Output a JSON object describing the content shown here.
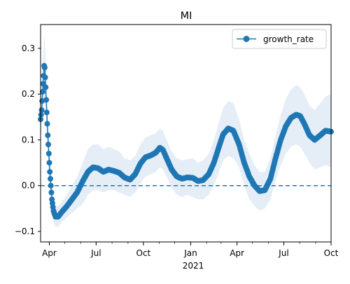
{
  "chart_data": {
    "type": "line",
    "title": "MI",
    "xlabel": "",
    "ylabel": "",
    "x_start": "2020-03-15",
    "x_end": "2021-10-01",
    "xlim": [
      "2020-03-15",
      "2021-10-01"
    ],
    "ylim": [
      -0.123,
      0.352
    ],
    "yticks": [
      -0.1,
      0.0,
      0.1,
      0.2,
      0.3
    ],
    "ytick_labels": [
      "−0.1",
      "0.0",
      "0.1",
      "0.2",
      "0.3"
    ],
    "xticks": [
      {
        "date": "2020-04-01",
        "label": "Apr"
      },
      {
        "date": "2020-07-01",
        "label": "Jul"
      },
      {
        "date": "2020-10-01",
        "label": "Oct"
      },
      {
        "date": "2021-01-01",
        "label": "Jan"
      },
      {
        "date": "2021-04-01",
        "label": "Apr"
      },
      {
        "date": "2021-07-01",
        "label": "Jul"
      },
      {
        "date": "2021-10-01",
        "label": "Oct"
      }
    ],
    "year_label": "2021",
    "reference_line": {
      "y": 0.0,
      "style": "dashed"
    },
    "legend": {
      "position": "upper right",
      "entries": [
        "growth_rate"
      ]
    },
    "grid": false,
    "series": [
      {
        "name": "growth_rate",
        "marker": "circle",
        "points": [
          {
            "x": "2020-03-15",
            "y": 0.145,
            "lo": 0.11,
            "hi": 0.19
          },
          {
            "x": "2020-03-17",
            "y": 0.165,
            "lo": 0.12,
            "hi": 0.22
          },
          {
            "x": "2020-03-19",
            "y": 0.205,
            "lo": 0.16,
            "hi": 0.26
          },
          {
            "x": "2020-03-21",
            "y": 0.24,
            "lo": 0.19,
            "hi": 0.3
          },
          {
            "x": "2020-03-22",
            "y": 0.262,
            "lo": 0.21,
            "hi": 0.33
          },
          {
            "x": "2020-03-23",
            "y": 0.258,
            "lo": 0.2,
            "hi": 0.32
          },
          {
            "x": "2020-03-25",
            "y": 0.215,
            "lo": 0.17,
            "hi": 0.27
          },
          {
            "x": "2020-03-27",
            "y": 0.16,
            "lo": 0.12,
            "hi": 0.21
          },
          {
            "x": "2020-03-29",
            "y": 0.11,
            "lo": 0.07,
            "hi": 0.15
          },
          {
            "x": "2020-03-31",
            "y": 0.07,
            "lo": 0.03,
            "hi": 0.11
          },
          {
            "x": "2020-04-02",
            "y": 0.03,
            "lo": -0.01,
            "hi": 0.07
          },
          {
            "x": "2020-04-04",
            "y": 0.0,
            "lo": -0.04,
            "hi": 0.04
          },
          {
            "x": "2020-04-06",
            "y": -0.03,
            "lo": -0.06,
            "hi": 0.01
          },
          {
            "x": "2020-04-09",
            "y": -0.055,
            "lo": -0.08,
            "hi": -0.03
          },
          {
            "x": "2020-04-13",
            "y": -0.068,
            "lo": -0.09,
            "hi": -0.045
          },
          {
            "x": "2020-04-18",
            "y": -0.068,
            "lo": -0.09,
            "hi": -0.045
          },
          {
            "x": "2020-04-25",
            "y": -0.058,
            "lo": -0.08,
            "hi": -0.035
          },
          {
            "x": "2020-05-05",
            "y": -0.045,
            "lo": -0.07,
            "hi": -0.02
          },
          {
            "x": "2020-05-15",
            "y": -0.03,
            "lo": -0.06,
            "hi": 0.0
          },
          {
            "x": "2020-05-25",
            "y": -0.015,
            "lo": -0.05,
            "hi": 0.02
          },
          {
            "x": "2020-06-05",
            "y": 0.01,
            "lo": -0.04,
            "hi": 0.05
          },
          {
            "x": "2020-06-15",
            "y": 0.03,
            "lo": -0.02,
            "hi": 0.08
          },
          {
            "x": "2020-06-25",
            "y": 0.04,
            "lo": -0.01,
            "hi": 0.09
          },
          {
            "x": "2020-07-05",
            "y": 0.038,
            "lo": -0.01,
            "hi": 0.09
          },
          {
            "x": "2020-07-15",
            "y": 0.03,
            "lo": -0.015,
            "hi": 0.08
          },
          {
            "x": "2020-07-25",
            "y": 0.035,
            "lo": -0.01,
            "hi": 0.085
          },
          {
            "x": "2020-08-05",
            "y": 0.032,
            "lo": -0.01,
            "hi": 0.08
          },
          {
            "x": "2020-08-15",
            "y": 0.028,
            "lo": -0.015,
            "hi": 0.075
          },
          {
            "x": "2020-08-25",
            "y": 0.018,
            "lo": -0.02,
            "hi": 0.06
          },
          {
            "x": "2020-09-05",
            "y": 0.013,
            "lo": -0.025,
            "hi": 0.055
          },
          {
            "x": "2020-09-15",
            "y": 0.025,
            "lo": -0.015,
            "hi": 0.065
          },
          {
            "x": "2020-09-25",
            "y": 0.048,
            "lo": 0.005,
            "hi": 0.09
          },
          {
            "x": "2020-10-05",
            "y": 0.062,
            "lo": 0.02,
            "hi": 0.105
          },
          {
            "x": "2020-10-15",
            "y": 0.066,
            "lo": 0.025,
            "hi": 0.11
          },
          {
            "x": "2020-10-25",
            "y": 0.072,
            "lo": 0.03,
            "hi": 0.115
          },
          {
            "x": "2020-11-02",
            "y": 0.083,
            "lo": 0.04,
            "hi": 0.125
          },
          {
            "x": "2020-11-08",
            "y": 0.078,
            "lo": 0.035,
            "hi": 0.12
          },
          {
            "x": "2020-11-15",
            "y": 0.06,
            "lo": 0.02,
            "hi": 0.1
          },
          {
            "x": "2020-11-25",
            "y": 0.035,
            "lo": -0.005,
            "hi": 0.075
          },
          {
            "x": "2020-12-05",
            "y": 0.02,
            "lo": -0.02,
            "hi": 0.06
          },
          {
            "x": "2020-12-15",
            "y": 0.015,
            "lo": -0.025,
            "hi": 0.055
          },
          {
            "x": "2020-12-25",
            "y": 0.018,
            "lo": -0.02,
            "hi": 0.058
          },
          {
            "x": "2021-01-05",
            "y": 0.017,
            "lo": -0.025,
            "hi": 0.06
          },
          {
            "x": "2021-01-15",
            "y": 0.01,
            "lo": -0.03,
            "hi": 0.05
          },
          {
            "x": "2021-01-25",
            "y": 0.012,
            "lo": -0.03,
            "hi": 0.055
          },
          {
            "x": "2021-02-05",
            "y": 0.025,
            "lo": -0.02,
            "hi": 0.07
          },
          {
            "x": "2021-02-15",
            "y": 0.05,
            "lo": 0.0,
            "hi": 0.1
          },
          {
            "x": "2021-02-25",
            "y": 0.085,
            "lo": 0.03,
            "hi": 0.14
          },
          {
            "x": "2021-03-05",
            "y": 0.112,
            "lo": 0.055,
            "hi": 0.17
          },
          {
            "x": "2021-03-15",
            "y": 0.125,
            "lo": 0.065,
            "hi": 0.185
          },
          {
            "x": "2021-03-25",
            "y": 0.12,
            "lo": 0.06,
            "hi": 0.18
          },
          {
            "x": "2021-04-05",
            "y": 0.09,
            "lo": 0.04,
            "hi": 0.145
          },
          {
            "x": "2021-04-15",
            "y": 0.05,
            "lo": 0.0,
            "hi": 0.1
          },
          {
            "x": "2021-04-25",
            "y": 0.02,
            "lo": -0.03,
            "hi": 0.07
          },
          {
            "x": "2021-05-05",
            "y": 0.0,
            "lo": -0.045,
            "hi": 0.045
          },
          {
            "x": "2021-05-15",
            "y": -0.012,
            "lo": -0.055,
            "hi": 0.03
          },
          {
            "x": "2021-05-25",
            "y": -0.01,
            "lo": -0.05,
            "hi": 0.03
          },
          {
            "x": "2021-06-05",
            "y": 0.015,
            "lo": -0.03,
            "hi": 0.06
          },
          {
            "x": "2021-06-15",
            "y": 0.06,
            "lo": 0.01,
            "hi": 0.11
          },
          {
            "x": "2021-06-25",
            "y": 0.1,
            "lo": 0.045,
            "hi": 0.155
          },
          {
            "x": "2021-07-05",
            "y": 0.13,
            "lo": 0.07,
            "hi": 0.19
          },
          {
            "x": "2021-07-15",
            "y": 0.148,
            "lo": 0.085,
            "hi": 0.21
          },
          {
            "x": "2021-07-25",
            "y": 0.155,
            "lo": 0.09,
            "hi": 0.22
          },
          {
            "x": "2021-08-02",
            "y": 0.152,
            "lo": 0.085,
            "hi": 0.215
          },
          {
            "x": "2021-08-10",
            "y": 0.135,
            "lo": 0.07,
            "hi": 0.2
          },
          {
            "x": "2021-08-20",
            "y": 0.11,
            "lo": 0.05,
            "hi": 0.175
          },
          {
            "x": "2021-08-30",
            "y": 0.1,
            "lo": 0.035,
            "hi": 0.165
          },
          {
            "x": "2021-09-10",
            "y": 0.11,
            "lo": 0.04,
            "hi": 0.18
          },
          {
            "x": "2021-09-20",
            "y": 0.12,
            "lo": 0.045,
            "hi": 0.195
          },
          {
            "x": "2021-10-01",
            "y": 0.118,
            "lo": 0.04,
            "hi": 0.2
          }
        ]
      }
    ]
  },
  "colors": {
    "line": "#1f77b4",
    "band": "#dce8f4",
    "axis": "#000000"
  }
}
